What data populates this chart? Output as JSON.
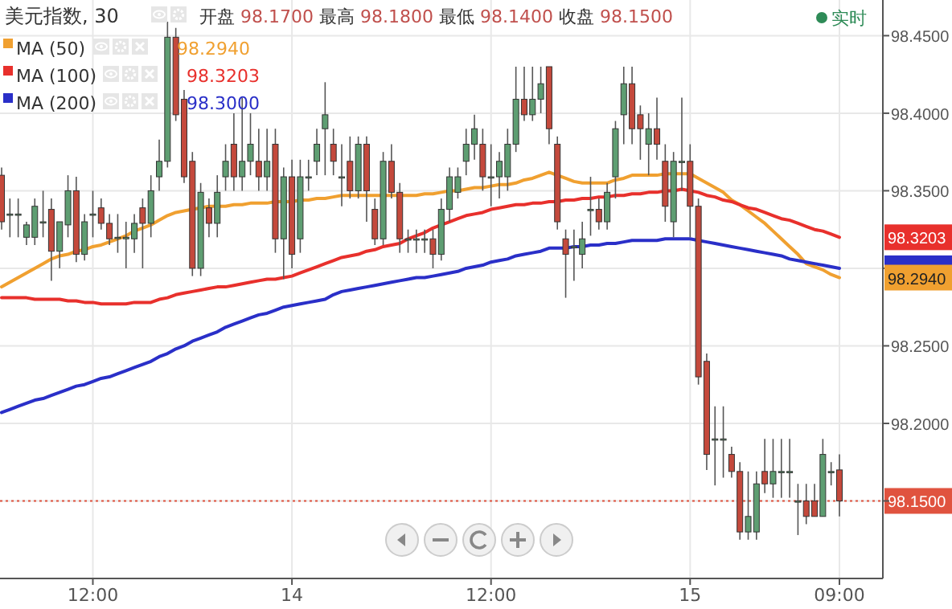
{
  "chart_data": {
    "type": "candlestick",
    "title": "美元指数, 30",
    "annotations": [
      "开盘 98.1700 最高 98.1800 最低 98.1400 收盘 98.1500",
      "实时",
      "98.2940",
      "98.3203",
      "98.3000"
    ],
    "categories": [
      null,
      null,
      null,
      null,
      null,
      null,
      null,
      null,
      null,
      null,
      null,
      "12:00",
      null,
      null,
      null,
      null,
      null,
      null,
      null,
      null,
      null,
      null,
      null,
      null,
      null,
      null,
      null,
      null,
      null,
      null,
      null,
      null,
      null,
      null,
      null,
      "14",
      null,
      null,
      null,
      null,
      null,
      null,
      null,
      null,
      null,
      null,
      null,
      null,
      null,
      null,
      null,
      null,
      null,
      null,
      null,
      null,
      null,
      null,
      null,
      "12:00",
      null,
      null,
      null,
      null,
      null,
      null,
      null,
      null,
      null,
      null,
      null,
      null,
      null,
      null,
      null,
      null,
      null,
      null,
      null,
      null,
      null,
      null,
      null,
      "15",
      null,
      null,
      null,
      null,
      null,
      null,
      null,
      null,
      null,
      null,
      null,
      null,
      null,
      null,
      null,
      null,
      null,
      "09:00"
    ],
    "ohlc": [
      [
        98.36,
        98.365,
        98.325,
        98.33
      ],
      [
        98.335,
        98.345,
        98.32,
        98.335
      ],
      [
        98.335,
        98.345,
        98.32,
        98.335
      ],
      [
        98.32,
        98.33,
        98.315,
        98.328
      ],
      [
        98.32,
        98.345,
        98.315,
        98.34
      ],
      [
        98.33,
        98.35,
        98.32,
        98.33
      ],
      [
        98.338,
        98.345,
        98.292,
        98.311
      ],
      [
        98.311,
        98.33,
        98.3,
        98.33
      ],
      [
        98.328,
        98.36,
        98.32,
        98.35
      ],
      [
        98.35,
        98.359,
        98.304,
        98.309
      ],
      [
        98.309,
        98.335,
        98.305,
        98.33
      ],
      [
        98.335,
        98.35,
        98.32,
        98.335
      ],
      [
        98.339,
        98.345,
        98.325,
        98.329
      ],
      [
        98.329,
        98.335,
        98.315,
        98.319
      ],
      [
        98.32,
        98.335,
        98.31,
        98.32
      ],
      [
        98.319,
        98.33,
        98.3,
        98.32
      ],
      [
        98.319,
        98.335,
        98.31,
        98.329
      ],
      [
        98.339,
        98.345,
        98.3,
        98.329
      ],
      [
        98.329,
        98.36,
        98.32,
        98.35
      ],
      [
        98.359,
        98.383,
        98.35,
        98.369
      ],
      [
        98.369,
        98.459,
        98.365,
        98.449
      ],
      [
        98.449,
        98.455,
        98.395,
        98.399
      ],
      [
        98.409,
        98.415,
        98.355,
        98.359
      ],
      [
        98.369,
        98.375,
        98.295,
        98.3
      ],
      [
        98.3,
        98.355,
        98.295,
        98.349
      ],
      [
        98.339,
        98.345,
        98.32,
        98.329
      ],
      [
        98.329,
        98.36,
        98.32,
        98.349
      ],
      [
        98.359,
        98.38,
        98.35,
        98.369
      ],
      [
        98.38,
        98.4,
        98.35,
        98.359
      ],
      [
        98.359,
        98.41,
        98.35,
        98.369
      ],
      [
        98.369,
        98.4,
        98.36,
        98.38
      ],
      [
        98.369,
        98.39,
        98.35,
        98.359
      ],
      [
        98.359,
        98.39,
        98.35,
        98.369
      ],
      [
        98.38,
        98.39,
        98.31,
        98.319
      ],
      [
        98.319,
        98.365,
        98.293,
        98.359
      ],
      [
        98.359,
        98.37,
        98.3,
        98.309
      ],
      [
        98.319,
        98.37,
        98.31,
        98.359
      ],
      [
        98.359,
        98.37,
        98.35,
        98.359
      ],
      [
        98.369,
        98.39,
        98.36,
        98.38
      ],
      [
        98.39,
        98.42,
        98.36,
        98.399
      ],
      [
        98.38,
        98.39,
        98.36,
        98.369
      ],
      [
        98.359,
        98.38,
        98.34,
        98.359
      ],
      [
        98.369,
        98.385,
        98.345,
        98.35
      ],
      [
        98.35,
        98.385,
        98.345,
        98.38
      ],
      [
        98.38,
        98.385,
        98.33,
        98.35
      ],
      [
        98.338,
        98.345,
        98.315,
        98.319
      ],
      [
        98.319,
        98.375,
        98.315,
        98.369
      ],
      [
        98.369,
        98.38,
        98.345,
        98.349
      ],
      [
        98.349,
        98.355,
        98.31,
        98.319
      ],
      [
        98.319,
        98.325,
        98.31,
        98.319
      ],
      [
        98.319,
        98.325,
        98.31,
        98.319
      ],
      [
        98.319,
        98.325,
        98.31,
        98.319
      ],
      [
        98.319,
        98.325,
        98.3,
        98.309
      ],
      [
        98.309,
        98.345,
        98.305,
        98.338
      ],
      [
        98.338,
        98.365,
        98.33,
        98.359
      ],
      [
        98.349,
        98.365,
        98.345,
        98.359
      ],
      [
        98.369,
        98.39,
        98.36,
        98.38
      ],
      [
        98.38,
        98.399,
        98.37,
        98.39
      ],
      [
        98.38,
        98.39,
        98.35,
        98.359
      ],
      [
        98.359,
        98.38,
        98.34,
        98.359
      ],
      [
        98.359,
        98.375,
        98.345,
        98.369
      ],
      [
        98.359,
        98.39,
        98.35,
        98.38
      ],
      [
        98.38,
        98.43,
        98.375,
        98.409
      ],
      [
        98.409,
        98.43,
        98.395,
        98.399
      ],
      [
        98.399,
        98.43,
        98.395,
        98.409
      ],
      [
        98.409,
        98.43,
        98.4,
        98.419
      ],
      [
        98.43,
        98.43,
        98.38,
        98.39
      ],
      [
        98.38,
        98.385,
        98.325,
        98.33
      ],
      [
        98.319,
        98.325,
        98.281,
        98.309
      ],
      [
        98.314,
        98.325,
        98.292,
        98.314
      ],
      [
        98.309,
        98.33,
        98.3,
        98.319
      ],
      [
        98.338,
        98.359,
        98.321,
        98.338
      ],
      [
        98.338,
        98.345,
        98.325,
        98.33
      ],
      [
        98.33,
        98.355,
        98.325,
        98.349
      ],
      [
        98.359,
        98.395,
        98.345,
        98.39
      ],
      [
        98.399,
        98.43,
        98.38,
        98.419
      ],
      [
        98.419,
        98.43,
        98.38,
        98.39
      ],
      [
        98.399,
        98.405,
        98.37,
        98.39
      ],
      [
        98.38,
        98.4,
        98.36,
        98.39
      ],
      [
        98.39,
        98.41,
        98.37,
        98.38
      ],
      [
        98.369,
        98.38,
        98.33,
        98.34
      ],
      [
        98.33,
        98.375,
        98.32,
        98.369
      ],
      [
        98.369,
        98.41,
        98.35,
        98.369
      ],
      [
        98.369,
        98.38,
        98.32,
        98.34
      ],
      [
        98.34,
        98.345,
        98.225,
        98.23
      ],
      [
        98.24,
        98.245,
        98.17,
        98.18
      ],
      [
        98.19,
        98.211,
        98.16,
        98.19
      ],
      [
        98.19,
        98.211,
        98.165,
        98.19
      ],
      [
        98.18,
        98.185,
        98.165,
        98.169
      ],
      [
        98.169,
        98.175,
        98.125,
        98.13
      ],
      [
        98.13,
        98.169,
        98.125,
        98.14
      ],
      [
        98.13,
        98.169,
        98.125,
        98.161
      ],
      [
        98.169,
        98.19,
        98.155,
        98.161
      ],
      [
        98.161,
        98.19,
        98.152,
        98.169
      ],
      [
        98.169,
        98.19,
        98.152,
        98.169
      ],
      [
        98.169,
        98.19,
        98.152,
        98.169
      ],
      [
        98.15,
        98.161,
        98.128,
        98.15
      ],
      [
        98.15,
        98.161,
        98.135,
        98.14
      ],
      [
        98.15,
        98.161,
        98.14,
        98.14
      ],
      [
        98.14,
        98.19,
        98.14,
        98.18
      ],
      [
        98.169,
        98.175,
        98.16,
        98.169
      ],
      [
        98.17,
        98.18,
        98.14,
        98.15
      ]
    ],
    "series": [
      {
        "name": "MA (50)",
        "type": "line",
        "color": "#f0a030",
        "values": [
          98.288,
          98.291,
          98.294,
          98.297,
          98.3,
          98.303,
          98.306,
          98.308,
          98.309,
          98.311,
          98.312,
          98.314,
          98.315,
          98.317,
          98.319,
          98.321,
          98.324,
          98.326,
          98.328,
          98.331,
          98.334,
          98.336,
          98.337,
          98.338,
          98.339,
          98.34,
          98.34,
          98.34,
          98.341,
          98.341,
          98.342,
          98.342,
          98.342,
          98.343,
          98.343,
          98.343,
          98.344,
          98.344,
          98.345,
          98.345,
          98.346,
          98.347,
          98.347,
          98.347,
          98.347,
          98.347,
          98.347,
          98.347,
          98.347,
          98.347,
          98.347,
          98.348,
          98.348,
          98.349,
          98.35,
          98.35,
          98.351,
          98.352,
          98.352,
          98.353,
          98.354,
          98.354,
          98.355,
          98.357,
          98.358,
          98.36,
          98.362,
          98.36,
          98.358,
          98.356,
          98.355,
          98.355,
          98.355,
          98.355,
          98.357,
          98.358,
          98.36,
          98.36,
          98.36,
          98.36,
          98.361,
          98.361,
          98.361,
          98.361,
          98.358,
          98.355,
          98.352,
          98.349,
          98.344,
          98.341,
          98.337,
          98.333,
          98.329,
          98.324,
          98.319,
          98.314,
          98.309,
          98.303,
          98.301,
          98.299,
          98.296,
          98.294
        ]
      },
      {
        "name": "MA (100)",
        "type": "line",
        "color": "#e8302c",
        "values": [
          98.281,
          98.281,
          98.281,
          98.281,
          98.28,
          98.28,
          98.28,
          98.28,
          98.279,
          98.279,
          98.278,
          98.278,
          98.277,
          98.277,
          98.277,
          98.277,
          98.278,
          98.278,
          98.278,
          98.28,
          98.281,
          98.283,
          98.284,
          98.285,
          98.286,
          98.287,
          98.288,
          98.288,
          98.289,
          98.29,
          98.291,
          98.292,
          98.293,
          98.293,
          98.294,
          98.295,
          98.297,
          98.299,
          98.301,
          98.303,
          98.305,
          98.307,
          98.308,
          98.309,
          98.311,
          98.312,
          98.314,
          98.315,
          98.316,
          98.319,
          98.321,
          98.323,
          98.326,
          98.328,
          98.33,
          98.332,
          98.334,
          98.335,
          98.336,
          98.338,
          98.339,
          98.34,
          98.341,
          98.341,
          98.342,
          98.342,
          98.343,
          98.343,
          98.344,
          98.344,
          98.345,
          98.345,
          98.346,
          98.346,
          98.347,
          98.347,
          98.348,
          98.348,
          98.349,
          98.349,
          98.35,
          98.35,
          98.351,
          98.35,
          98.349,
          98.347,
          98.346,
          98.344,
          98.343,
          98.341,
          98.339,
          98.338,
          98.336,
          98.334,
          98.332,
          98.331,
          98.329,
          98.327,
          98.325,
          98.324,
          98.322,
          98.32
        ]
      },
      {
        "name": "MA (200)",
        "type": "line",
        "color": "#2a2fc8",
        "values": [
          98.207,
          98.209,
          98.211,
          98.213,
          98.215,
          98.216,
          98.218,
          98.22,
          98.222,
          98.224,
          98.225,
          98.227,
          98.229,
          98.23,
          98.232,
          98.234,
          98.236,
          98.238,
          98.24,
          98.243,
          98.245,
          98.248,
          98.25,
          98.253,
          98.255,
          98.257,
          98.259,
          98.262,
          98.264,
          98.266,
          98.268,
          98.27,
          98.271,
          98.273,
          98.275,
          98.276,
          98.277,
          98.278,
          98.279,
          98.28,
          98.283,
          98.285,
          98.286,
          98.287,
          98.288,
          98.289,
          98.29,
          98.291,
          98.292,
          98.293,
          98.294,
          98.294,
          98.295,
          98.296,
          98.297,
          98.298,
          98.3,
          98.301,
          98.302,
          98.304,
          98.305,
          98.306,
          98.308,
          98.309,
          98.31,
          98.311,
          98.313,
          98.313,
          98.313,
          98.314,
          98.314,
          98.315,
          98.315,
          98.316,
          98.316,
          98.317,
          98.318,
          98.318,
          98.318,
          98.318,
          98.319,
          98.319,
          98.319,
          98.319,
          98.318,
          98.317,
          98.316,
          98.315,
          98.314,
          98.313,
          98.312,
          98.311,
          98.31,
          98.309,
          98.308,
          98.306,
          98.305,
          98.304,
          98.303,
          98.302,
          98.301,
          98.3
        ]
      }
    ],
    "ylim": [
      98.1,
      98.473
    ],
    "yticks": [
      {
        "value": 98.15,
        "label": null
      },
      {
        "value": 98.2,
        "label": "98.2000"
      },
      {
        "value": 98.25,
        "label": "98.2500"
      },
      {
        "value": 98.3,
        "label": null
      },
      {
        "value": 98.35,
        "label": "98.3500"
      },
      {
        "value": 98.4,
        "label": "98.4000"
      },
      {
        "value": 98.45,
        "label": "98.4500"
      }
    ],
    "ref_lines": [
      {
        "axis": "y",
        "value": 98.15,
        "label": "98.1500",
        "color": "#e0533f",
        "line_style": "dotted"
      }
    ],
    "grid": true,
    "legend": "top left"
  }
}
